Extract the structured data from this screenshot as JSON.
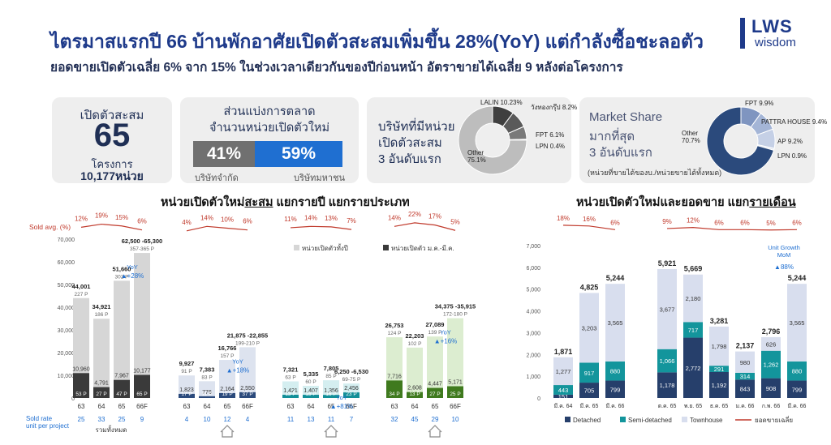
{
  "header": {
    "title": "ไตรมาสแรกปี 66 บ้านพักอาศัยเปิดตัวสะสมเพิ่มขึ้น 28%(YoY) แต่กำลังซื้อชะลอตัว",
    "subtitle": "ยอดขายเปิดตัวเฉลี่ย 6% จาก 15% ในช่วงเวลาเดียวกันของปีก่อนหน้า อัตราขายได้เฉลี่ย 9 หลังต่อโครงการ"
  },
  "logo": {
    "line1": "LWS",
    "line2": "wisdom"
  },
  "kpi": {
    "label": "เปิดตัวสะสม",
    "value": "65",
    "unit": "โครงการ",
    "units": "10,177หน่วย"
  },
  "share": {
    "title1": "ส่วนแบ่งการตลาด",
    "title2": "จำนวนหน่วยเปิดตัวใหม่",
    "left_value": "41%",
    "right_value": "59%",
    "left_label": "บริษัทจำกัด",
    "right_label": "บริษัทมหาชน",
    "left_color": "#707070",
    "right_color": "#1f6fd1"
  },
  "donut1": {
    "title": [
      "บริษัทที่มีหน่วย",
      "เปิดตัวสะสม",
      "3 อันดับแรก"
    ],
    "slices": [
      {
        "label": "LALIN 10.23%",
        "value": 10.23,
        "color": "#3f3f3f"
      },
      {
        "label": "วังทองกรุ๊ป 8.2%",
        "value": 8.2,
        "color": "#5a5a5a"
      },
      {
        "label": "FPT 6.1%",
        "value": 6.1,
        "color": "#7a7a7a"
      },
      {
        "label": "LPN 0.4%",
        "value": 0.4,
        "color": "#999999"
      },
      {
        "label": "Other 75.1%",
        "value": 75.1,
        "color": "#bdbdbd"
      }
    ]
  },
  "donut2": {
    "title": [
      "Market Share",
      "มากที่สุด",
      "3 อันดับแรก"
    ],
    "note": "(หน่วยที่ขายได้ของบ./หน่วยขายได้ทั้งหมด)",
    "slices": [
      {
        "label": "FPT 9.9%",
        "value": 9.9,
        "color": "#7f95c0"
      },
      {
        "label": "PATTRA HOUSE 9.4%",
        "value": 9.4,
        "color": "#a4b5d6"
      },
      {
        "label": "AP 9.2%",
        "value": 9.2,
        "color": "#c5d0e6"
      },
      {
        "label": "LPN 0.9%",
        "value": 0.9,
        "color": "#dfe5f1"
      },
      {
        "label": "Other 70.7%",
        "value": 70.7,
        "color": "#2b4a7c"
      }
    ]
  },
  "left_section_title": {
    "pre": "หน่วยเปิดตัวใหม่",
    "underlined": "สะสม",
    "post": " แยกรายปี แยกรายประเภท"
  },
  "right_section_title": {
    "pre": "หน่วยเปิดตัวใหม่และยอดขาย แยก",
    "underlined": "รายเดือน"
  },
  "chart_data": [
    {
      "type": "bar",
      "title": "หน่วยเปิดตัวใหม่สะสม แยกรายปี แยกรายประเภท",
      "ylim": [
        0,
        70000
      ],
      "yticks": [
        "70,000",
        "60,000",
        "50,000",
        "40,000",
        "30,000",
        "20,000",
        "10,000",
        "0"
      ],
      "sold_label": "Sold avg. (%)",
      "legend": [
        {
          "name": "หน่วยเปิดตัวทั้งปี",
          "color": "#d6d6d6"
        },
        {
          "name": "หน่วยเปิดตัว ม.ค.-มี.ค.",
          "color": "#3a3a3a"
        }
      ],
      "sold_rate_label": [
        "Sold rate",
        "unit per project"
      ],
      "groups": [
        {
          "name": "รวมทั้งหมด",
          "categories": [
            "63",
            "64",
            "65",
            "66F"
          ],
          "total": [
            44001,
            34921,
            51660,
            63900
          ],
          "q1": [
            10960,
            4791,
            7967,
            10177
          ],
          "total_labels": [
            "44,001",
            "34,921",
            "51,660",
            "62,500 -65,300"
          ],
          "total_proj": [
            "227 P",
            "186 P",
            "302 P",
            "357-365 P"
          ],
          "q1_labels": [
            "10,960",
            "4,791",
            "7,967",
            "10,177"
          ],
          "q1_proj": [
            "53 P",
            "27 P",
            "47 P",
            "65 P"
          ],
          "sold_pct": [
            "12%",
            "19%",
            "15%",
            "6%"
          ],
          "sold_rate": [
            "25",
            "33",
            "25",
            "9"
          ],
          "yoy": "+28%",
          "total_color": "#d6d6d6",
          "q1_color": "#3a3a3a"
        },
        {
          "name": "บ้านเดี่ยว",
          "categories": [
            "63",
            "64",
            "65",
            "66F"
          ],
          "total": [
            9927,
            7383,
            16766,
            22365
          ],
          "q1": [
            1823,
            776,
            2164,
            2550
          ],
          "total_labels": [
            "9,927",
            "7,383",
            "16,766",
            "21,875 -22,855"
          ],
          "total_proj": [
            "91 P",
            "83 P",
            "157 P",
            "199-210 P"
          ],
          "q1_labels": [
            "1,823",
            "776",
            "2,164",
            "2,550"
          ],
          "q1_proj": [
            "17 P",
            "11 P",
            "19 P",
            "37 P"
          ],
          "sold_pct": [
            "4%",
            "14%",
            "10%",
            "6%"
          ],
          "sold_rate": [
            "4",
            "10",
            "12",
            "4"
          ],
          "yoy": "+18%",
          "total_color": "#dde3ef",
          "q1_color": "#2b4a7c"
        },
        {
          "name": "บ้านแฝด",
          "categories": [
            "63",
            "64",
            "65",
            "66F"
          ],
          "total": [
            7321,
            5335,
            7805,
            6390
          ],
          "q1": [
            1421,
            1407,
            1356,
            2456
          ],
          "total_labels": [
            "7,321",
            "5,335",
            "7,805",
            "6,250 -6,530"
          ],
          "total_proj": [
            "63 P",
            "60 P",
            "85 P",
            "69-75 P"
          ],
          "q1_labels": [
            "1,421",
            "1,407",
            "1,356",
            "2,456"
          ],
          "q1_proj": [
            "13 P",
            "15 P",
            "16 P",
            "23 P"
          ],
          "sold_pct": [
            "11%",
            "14%",
            "13%",
            "7%"
          ],
          "sold_rate": [
            "11",
            "13",
            "11",
            "7"
          ],
          "yoy": "+81%",
          "total_color": "#d4eef0",
          "q1_color": "#128f98"
        },
        {
          "name": "ทาวน์เฮาส์",
          "categories": [
            "63",
            "64",
            "65",
            "66F"
          ],
          "total": [
            26753,
            22203,
            27089,
            35145
          ],
          "q1": [
            7716,
            2608,
            4447,
            5171
          ],
          "total_labels": [
            "26,753",
            "22,203",
            "27,089",
            "34,375 -35,915"
          ],
          "total_proj": [
            "124 P",
            "102 P",
            "139 P",
            "172-180 P"
          ],
          "q1_labels": [
            "7,716",
            "2,608",
            "4,447",
            "5,171"
          ],
          "q1_proj": [
            "34 P",
            "13 P",
            "27 P",
            "25 P"
          ],
          "sold_pct": [
            "14%",
            "22%",
            "17%",
            "5%"
          ],
          "sold_rate": [
            "32",
            "45",
            "29",
            "10"
          ],
          "yoy": "+16%",
          "total_color": "#dcedd0",
          "q1_color": "#3f7a1e"
        }
      ]
    },
    {
      "type": "bar",
      "title": "หน่วยเปิดตัวใหม่และยอดขาย แยกรายเดือน",
      "ylim": [
        0,
        7000
      ],
      "yticks": [
        "7,000",
        "6,000",
        "5,000",
        "4,000",
        "3,000",
        "2,000",
        "1,000",
        "0"
      ],
      "categories": [
        "มี.ค. 64",
        "มี.ค. 65",
        "มี.ค. 66",
        "ต.ค. 65",
        "พ.ย. 65",
        "ธ.ค. 65",
        "ม.ค. 66",
        "ก.พ. 66",
        "มี.ค. 66"
      ],
      "totals": [
        "1,871",
        "4,825",
        "5,244",
        "5,921",
        "5,669",
        "3,281",
        "2,137",
        "2,796",
        "5,244"
      ],
      "series": [
        {
          "name": "Detached",
          "color": "#263f6b",
          "values": [
            151,
            705,
            799,
            1178,
            2772,
            1192,
            843,
            908,
            799
          ]
        },
        {
          "name": "Semi-detached",
          "color": "#13959c",
          "values": [
            443,
            917,
            880,
            1066,
            717,
            291,
            314,
            1262,
            880
          ]
        },
        {
          "name": "Townhouse",
          "color": "#d8deee",
          "values": [
            1277,
            3203,
            3565,
            3677,
            2180,
            1798,
            980,
            626,
            3565
          ]
        }
      ],
      "sold_pct": [
        "18%",
        "16%",
        "6%",
        "9%",
        "12%",
        "6%",
        "6%",
        "5%",
        "6%"
      ],
      "sold_line_name": "ยอดขายเฉลี่ย",
      "sold_line_color": "#c0392b",
      "unit_growth": {
        "title": "Unit Growth",
        "sub": "MoM",
        "value": "88%"
      }
    }
  ]
}
